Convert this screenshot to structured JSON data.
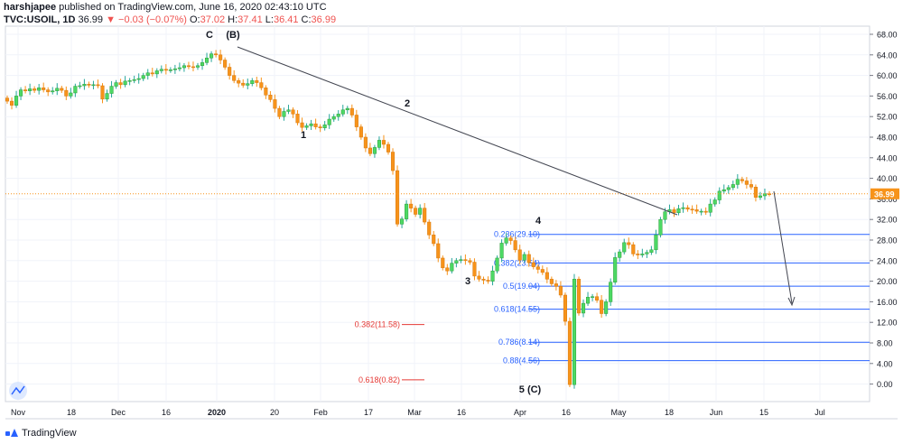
{
  "header": {
    "user": "harshjapee",
    "published": "published on TradingView.com, June 16, 2020 02:43:10 UTC",
    "symbol": "TVC:USOIL, 1D",
    "last": "36.99",
    "change": "▼ −0.03 (−0.07%)",
    "o_label": "O:",
    "o_val": "37.02",
    "h_label": "H:",
    "h_val": "37.41",
    "l_label": "L:",
    "l_val": "36.41",
    "c_label": "C:",
    "c_val": "36.99"
  },
  "footer": {
    "brand": "TradingView"
  },
  "colors": {
    "up": "#26a69a",
    "up_fill": "#4cd964",
    "down": "#f7931a",
    "fib": "#2962ff",
    "red": "#e53935",
    "last": "#f7931a"
  },
  "chart_data": {
    "type": "candlestick",
    "title": "",
    "xlabel": "",
    "ylabel": "",
    "ylim": [
      -4,
      70
    ],
    "yticks": [
      "68.00",
      "64.00",
      "60.00",
      "56.00",
      "52.00",
      "48.00",
      "44.00",
      "40.00",
      "36.00",
      "32.00",
      "28.00",
      "24.00",
      "20.00",
      "16.00",
      "12.00",
      "8.00",
      "4.00",
      "0.00"
    ],
    "xticks": [
      "Nov",
      "18",
      "Dec",
      "16",
      "2020",
      "20",
      "Feb",
      "17",
      "Mar",
      "16",
      "Apr",
      "16",
      "May",
      "18",
      "Jun",
      "15",
      "Jul"
    ],
    "last_price": "36.99",
    "closes": [
      55.0,
      54.2,
      56.0,
      57.2,
      57.0,
      57.4,
      57.1,
      57.6,
      57.2,
      56.8,
      57.0,
      57.5,
      57.1,
      56.0,
      56.6,
      57.9,
      58.0,
      58.3,
      58.1,
      58.2,
      58.0,
      55.4,
      56.5,
      57.9,
      58.6,
      58.2,
      58.9,
      59.0,
      59.2,
      59.4,
      60.0,
      60.5,
      60.3,
      60.9,
      61.2,
      61.0,
      61.1,
      61.3,
      61.5,
      61.9,
      61.7,
      61.6,
      61.9,
      62.5,
      63.4,
      64.2,
      64.0,
      63.0,
      61.6,
      60.0,
      59.0,
      58.5,
      58.1,
      58.4,
      59.0,
      58.6,
      57.6,
      56.2,
      55.3,
      53.6,
      52.0,
      53.0,
      53.3,
      52.5,
      50.8,
      49.9,
      50.2,
      50.6,
      50.0,
      49.8,
      50.4,
      51.5,
      52.0,
      52.5,
      53.3,
      53.6,
      52.3,
      50.0,
      48.0,
      45.9,
      44.8,
      46.0,
      47.4,
      46.6,
      45.1,
      41.5,
      31.1,
      32.1,
      35.0,
      34.2,
      33.0,
      34.2,
      31.5,
      29.0,
      27.3,
      24.5,
      22.6,
      22.0,
      23.5,
      24.0,
      24.2,
      24.0,
      23.7,
      21.0,
      20.4,
      20.2,
      20.0,
      22.0,
      24.5,
      27.4,
      28.4,
      27.9,
      26.1,
      24.1,
      25.2,
      23.6,
      22.8,
      22.3,
      21.7,
      20.4,
      19.5,
      19.0,
      17.3,
      12.2,
      -0.1,
      20.4,
      13.8,
      15.7,
      16.9,
      17.0,
      16.3,
      13.7,
      16.0,
      19.8,
      24.6,
      25.7,
      27.5,
      27.1,
      25.3,
      25.1,
      25.3,
      25.6,
      26.1,
      29.0,
      32.0,
      33.5,
      33.9,
      33.3,
      34.1,
      34.3,
      34.0,
      33.9,
      33.6,
      33.6,
      33.4,
      35.0,
      35.8,
      37.5,
      37.8,
      38.2,
      38.8,
      39.8,
      39.5,
      38.8,
      38.3,
      36.3,
      36.6,
      37.0,
      36.99
    ]
  },
  "annotations": {
    "wave_c": "C",
    "wave_b": "(B)",
    "wave_1": "1",
    "wave_2": "2",
    "wave_3": "3",
    "wave_4": "4",
    "wave_5c": "5 (C)",
    "fib_blue": [
      "0.236(29.10)",
      "0.382(23.54)",
      "0.5(19.04)",
      "0.618(14.55)",
      "0.786(8.14)",
      "0.88(4.56)"
    ],
    "fib_red": [
      "0.382(11.58)",
      "0.618(0.82)"
    ]
  }
}
